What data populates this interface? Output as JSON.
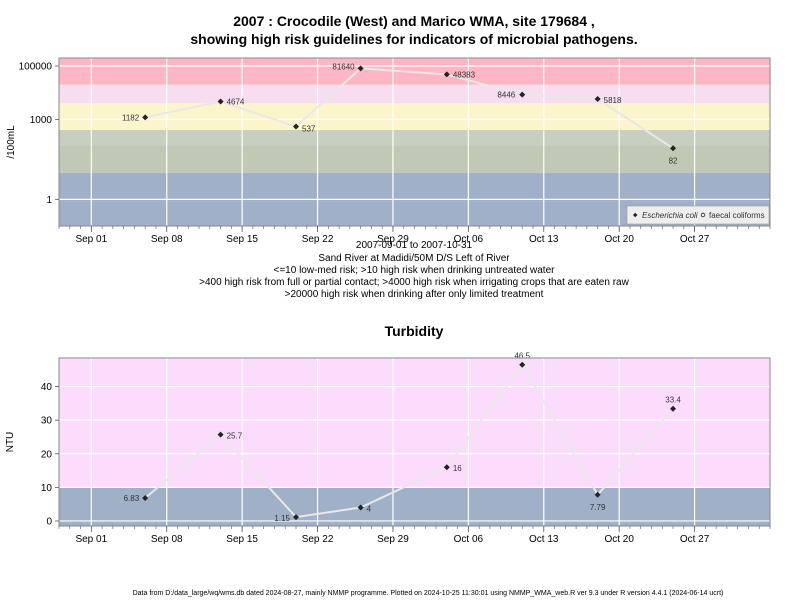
{
  "chart_data": [
    {
      "type": "line",
      "title_line1": "2007 : Crocodile (West) and Marico WMA, site 179684 ,",
      "title_line2": "showing high risk guidelines for indicators of microbial pathogens.",
      "ylabel": "/100mL",
      "yscale": "log",
      "yticks": [
        "1",
        "1000",
        "100000"
      ],
      "ytick_values": [
        1,
        1000,
        100000
      ],
      "xticks": [
        "Sep 01",
        "Sep 08",
        "Sep 15",
        "Sep 22",
        "Sep 29",
        "Oct 06",
        "Oct 13",
        "Oct 20",
        "Oct 27"
      ],
      "xtick_dates": [
        "2007-09-01",
        "2007-09-08",
        "2007-09-15",
        "2007-09-22",
        "2007-09-29",
        "2007-10-06",
        "2007-10-13",
        "2007-10-20",
        "2007-10-27"
      ],
      "xrange": [
        "2007-08-29",
        "2007-11-03"
      ],
      "subtitle_lines": [
        "2007-09-01 to 2007-10-31",
        "Sand River at Madidi/50M D/S Left of River",
        "<=10 low-med risk; >10 high risk when drinking untreated water",
        ">400 high risk from full or partial contact; >4000 high risk when irrigating crops that are eaten raw",
        ">20000 high risk when drinking after only limited treatment"
      ],
      "risk_bands": [
        {
          "from": 0.1,
          "to": 0.8,
          "color": "#a0b0c8"
        },
        {
          "from": 0.8,
          "to": 10,
          "color": "#a0b0c8"
        },
        {
          "from": 10,
          "to": 100,
          "color": "#c2c8b6"
        },
        {
          "from": 100,
          "to": 400,
          "color": "#c8cec0"
        },
        {
          "from": 400,
          "to": 4000,
          "color": "#fcf5cc"
        },
        {
          "from": 4000,
          "to": 20000,
          "color": "#f8dcf0"
        },
        {
          "from": 20000,
          "to": 200000,
          "color": "#ffb6c4"
        }
      ],
      "series": [
        {
          "name": "Escherichia coli",
          "points": [
            {
              "date": "2007-09-06",
              "value": 1182,
              "label": "1182"
            },
            {
              "date": "2007-09-13",
              "value": 4674,
              "label": "4674"
            },
            {
              "date": "2007-09-20",
              "value": 537,
              "label": "537"
            },
            {
              "date": "2007-09-26",
              "value": 81640,
              "label": "81640"
            },
            {
              "date": "2007-10-04",
              "value": 48383,
              "label": "48383"
            },
            {
              "date": "2007-10-11",
              "value": 8446,
              "label": "8446"
            },
            {
              "date": "2007-10-18",
              "value": 5818,
              "label": "5818"
            },
            {
              "date": "2007-10-25",
              "value": 82,
              "label": "82"
            }
          ]
        }
      ],
      "legend": {
        "position": "bottom-right",
        "entries": [
          "Escherichia coli",
          "faecal coliforms"
        ]
      }
    },
    {
      "type": "line",
      "title": "Turbidity",
      "ylabel": "NTU",
      "yticks": [
        "0",
        "10",
        "20",
        "30",
        "40"
      ],
      "ytick_values": [
        0,
        10,
        20,
        30,
        40
      ],
      "ylim": [
        -1.5,
        48.5
      ],
      "xticks": [
        "Sep 01",
        "Sep 08",
        "Sep 15",
        "Sep 22",
        "Sep 29",
        "Oct 06",
        "Oct 13",
        "Oct 20",
        "Oct 27"
      ],
      "xtick_dates": [
        "2007-09-01",
        "2007-09-08",
        "2007-09-15",
        "2007-09-22",
        "2007-09-29",
        "2007-10-06",
        "2007-10-13",
        "2007-10-20",
        "2007-10-27"
      ],
      "xrange": [
        "2007-08-29",
        "2007-11-03"
      ],
      "bands": [
        {
          "from": -1.5,
          "to": 10,
          "color": "#a0b0c8"
        },
        {
          "from": 10,
          "to": 48.5,
          "color": "#fcdcfc"
        }
      ],
      "series": [
        {
          "points": [
            {
              "date": "2007-09-06",
              "value": 6.83,
              "label": "6.83"
            },
            {
              "date": "2007-09-13",
              "value": 25.7,
              "label": "25.7"
            },
            {
              "date": "2007-09-20",
              "value": 1.15,
              "label": "1.15"
            },
            {
              "date": "2007-09-26",
              "value": 4,
              "label": "4"
            },
            {
              "date": "2007-10-04",
              "value": 16,
              "label": "16"
            },
            {
              "date": "2007-10-11",
              "value": 46.5,
              "label": "46.5"
            },
            {
              "date": "2007-10-18",
              "value": 7.79,
              "label": "7.79"
            },
            {
              "date": "2007-10-25",
              "value": 33.4,
              "label": "33.4"
            }
          ]
        }
      ]
    }
  ],
  "footer": "Data from D:/data_large/wq/wms.db dated 2024-08-27, mainly NMMP programme. Plotted on 2024-10-25 11:30:01 using NMMP_WMA_web.R ver 9.3 under R version 4.4.1 (2024-06-14 ucrt)",
  "colors": {
    "line": "#e8e8e8",
    "marker": "#222222",
    "grid": "#ffffff",
    "frame": "#888888"
  }
}
